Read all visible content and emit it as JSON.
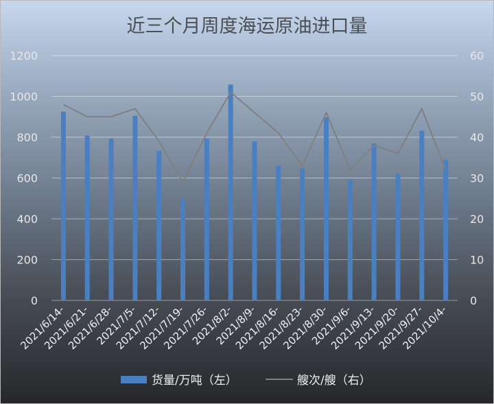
{
  "chart_data": {
    "type": "bar",
    "title": "近三个月周度海运原油进口量",
    "categories": [
      "2021/6/14-",
      "2021/6/21-",
      "2021/6/28-",
      "2021/7/5-",
      "2021/7/12-",
      "2021/7/19-",
      "2021/7/26-",
      "2021/8/2-",
      "2021/8/9-",
      "2021/8/16-",
      "2021/8/23-",
      "2021/8/30-",
      "2021/9/6-",
      "2021/9/13-",
      "2021/9/20-",
      "2021/9/27-",
      "2021/10/4-"
    ],
    "left_axis": {
      "ylim": [
        0,
        1200
      ],
      "ticks": [
        "0",
        "200",
        "400",
        "600",
        "800",
        "1000",
        "1200"
      ]
    },
    "right_axis": {
      "ylim": [
        0,
        60
      ],
      "ticks": [
        "0",
        "10",
        "20",
        "30",
        "40",
        "50",
        "60"
      ]
    },
    "series": [
      {
        "name": "货量/万吨（左）",
        "type": "bar",
        "axis": "left",
        "color": "#4a7fc1",
        "values": [
          925,
          808,
          793,
          905,
          732,
          498,
          792,
          1058,
          779,
          660,
          648,
          898,
          591,
          769,
          621,
          832,
          689
        ]
      },
      {
        "name": "艘次/艘（右）",
        "type": "line",
        "axis": "right",
        "color": "#808080",
        "values": [
          48,
          45,
          45,
          47,
          39,
          29,
          41,
          51,
          46,
          41,
          33,
          46,
          32,
          38,
          36,
          47,
          32
        ]
      }
    ],
    "grid": true,
    "legend_position": "bottom"
  }
}
